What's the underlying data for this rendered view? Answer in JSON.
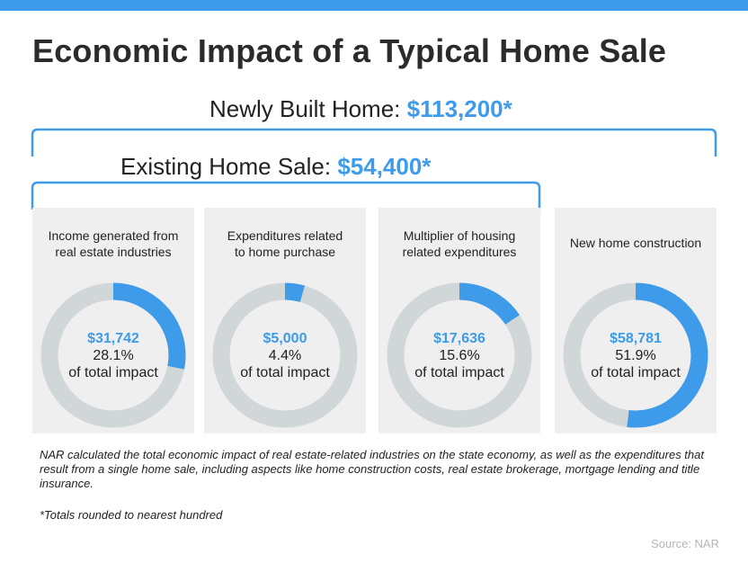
{
  "colors": {
    "accent": "#3d9be9",
    "track": "#d1d6d9",
    "panel": "#efefef"
  },
  "title": "Economic Impact of a Typical Home Sale",
  "newly_built": {
    "label": "Newly Built Home: ",
    "amount": "$113,200*"
  },
  "existing_sale": {
    "label": "Existing Home Sale: ",
    "amount": "$54,400*"
  },
  "chart_data": {
    "type": "pie",
    "title": "Economic Impact of a Typical Home Sale",
    "series": [
      {
        "name": "Income generated from real estate industries",
        "label_lines": [
          "Income generated from",
          "real estate industries"
        ],
        "value": "$31,742",
        "percent_text": "28.1%",
        "percent": 28.1
      },
      {
        "name": "Expenditures related to home purchase",
        "label_lines": [
          "Expenditures related",
          "to home purchase"
        ],
        "value": "$5,000",
        "percent_text": "4.4%",
        "percent": 4.4
      },
      {
        "name": "Multiplier of housing related expenditures",
        "label_lines": [
          "Multiplier of housing",
          "related expenditures"
        ],
        "value": "$17,636",
        "percent_text": "15.6%",
        "percent": 15.6
      },
      {
        "name": "New home construction",
        "label_lines": [
          "New home construction"
        ],
        "value": "$58,781",
        "percent_text": "51.9%",
        "percent": 51.9
      }
    ],
    "suffix": "of total impact"
  },
  "note": "NAR calculated the total economic impact of real estate-related industries on the state economy, as well as the expenditures that result from a single home sale, including aspects like home construction costs, real estate brokerage, mortgage lending and title insurance.",
  "footnote": "*Totals rounded to nearest hundred",
  "source": "Source: NAR"
}
